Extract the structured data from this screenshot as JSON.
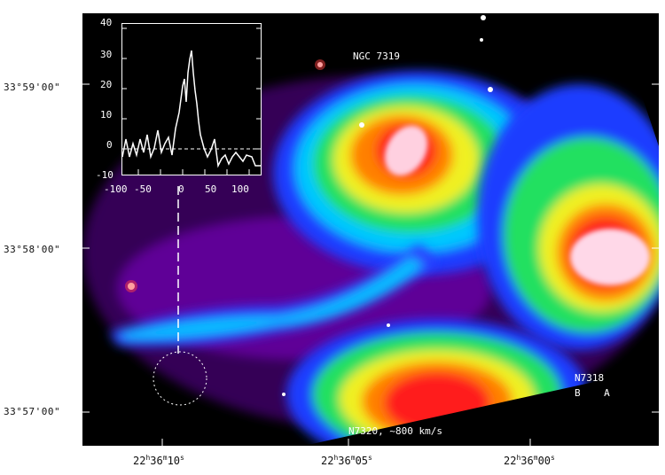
{
  "image": {
    "description_id": "ngc7319-ngc7320-composite",
    "labels": {
      "top_galaxy": "NGC 7319",
      "right_galaxy_line1": "N7318",
      "right_galaxy_line2": "B    A",
      "bottom_galaxy": "N7320, ~800 km/s"
    },
    "y_axis_labels": [
      "33°59'00\"",
      "33°58'00\"",
      "33°57'00\""
    ],
    "x_axis_labels": [
      {
        "h": "22",
        "hsup": "h",
        "m": "36",
        "msup": "m",
        "s": "10",
        "ssup": "s"
      },
      {
        "h": "22",
        "hsup": "h",
        "m": "36",
        "msup": "m",
        "s": "05",
        "ssup": "s"
      },
      {
        "h": "22",
        "hsup": "h",
        "m": "36",
        "msup": "m",
        "s": "00",
        "ssup": "s"
      }
    ],
    "inset": {
      "y_ticks": [
        "40",
        "30",
        "20",
        "10",
        "0",
        "-10"
      ],
      "x_ticks": [
        "-100",
        "-50",
        "0",
        "50",
        "100"
      ]
    },
    "colors": {
      "background": "#000000",
      "frame_bg": "#ffffff"
    }
  }
}
